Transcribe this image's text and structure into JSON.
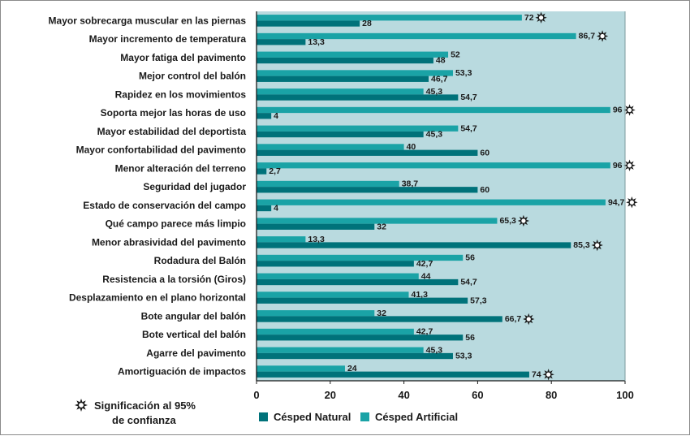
{
  "chart_data": {
    "type": "bar",
    "orientation": "horizontal",
    "title": "",
    "xlabel": "",
    "ylabel": "",
    "xlim": [
      0,
      100
    ],
    "x_ticks": [
      "0",
      "20",
      "40",
      "60",
      "80",
      "100"
    ],
    "grid": false,
    "plot_background": "#b9dadf",
    "categories": [
      "Mayor sobrecarga muscular en las piernas",
      "Mayor incremento de temperatura",
      "Mayor fatiga del pavimento",
      "Mejor control del balón",
      "Rapidez en los movimientos",
      "Soporta mejor las horas de uso",
      "Mayor estabilidad del deportista",
      "Mayor confortabilidad del pavimento",
      "Menor alteración del terreno",
      "Seguridad del jugador",
      "Estado de conservación del campo",
      "Qué campo parece más limpio",
      "Menor abrasividad del pavimento",
      "Rodadura del Balón",
      "Resistencia a la torsión (Giros)",
      "Desplazamiento en el plano horizontal",
      "Bote angular del balón",
      "Bote vertical del balón",
      "Agarre del pavimento",
      "Amortiguación de impactos"
    ],
    "series": [
      {
        "name": "Césped Natural",
        "color": "#00727a",
        "values": [
          28,
          13.3,
          48,
          46.7,
          54.7,
          4,
          45.3,
          60,
          2.7,
          60,
          4,
          32,
          85.3,
          42.7,
          54.7,
          57.3,
          66.7,
          56,
          53.3,
          74
        ],
        "labels": [
          "28",
          "13,3",
          "48",
          "46,7",
          "54,7",
          "4",
          "45,3",
          "60",
          "2,7",
          "60",
          "4",
          "32",
          "85,3",
          "42,7",
          "54,7",
          "57,3",
          "66,7",
          "56",
          "53,3",
          "74"
        ],
        "significant": [
          false,
          false,
          false,
          false,
          false,
          false,
          false,
          false,
          false,
          false,
          false,
          false,
          true,
          false,
          false,
          false,
          true,
          false,
          false,
          true
        ]
      },
      {
        "name": "Césped Artificial",
        "color": "#1aa3a6",
        "values": [
          72,
          86.7,
          52,
          53.3,
          45.3,
          96,
          54.7,
          40,
          96,
          38.7,
          94.7,
          65.3,
          13.3,
          56,
          44,
          41.3,
          32,
          42.7,
          45.3,
          24
        ],
        "labels": [
          "72",
          "86,7",
          "52",
          "53,3",
          "45,3",
          "96",
          "54,7",
          "40",
          "96",
          "38,7",
          "94,7",
          "65,3",
          "13,3",
          "56",
          "44",
          "41,3",
          "32",
          "42,7",
          "45,3",
          "24"
        ],
        "significant": [
          true,
          true,
          false,
          false,
          false,
          true,
          false,
          false,
          true,
          false,
          true,
          true,
          false,
          false,
          false,
          false,
          false,
          false,
          false,
          false
        ]
      }
    ],
    "legend": {
      "placement": "bottom",
      "significance_note_line1": "Significación al 95%",
      "significance_note_line2": "de confianza",
      "significance_icon": "star-burst-icon"
    }
  }
}
